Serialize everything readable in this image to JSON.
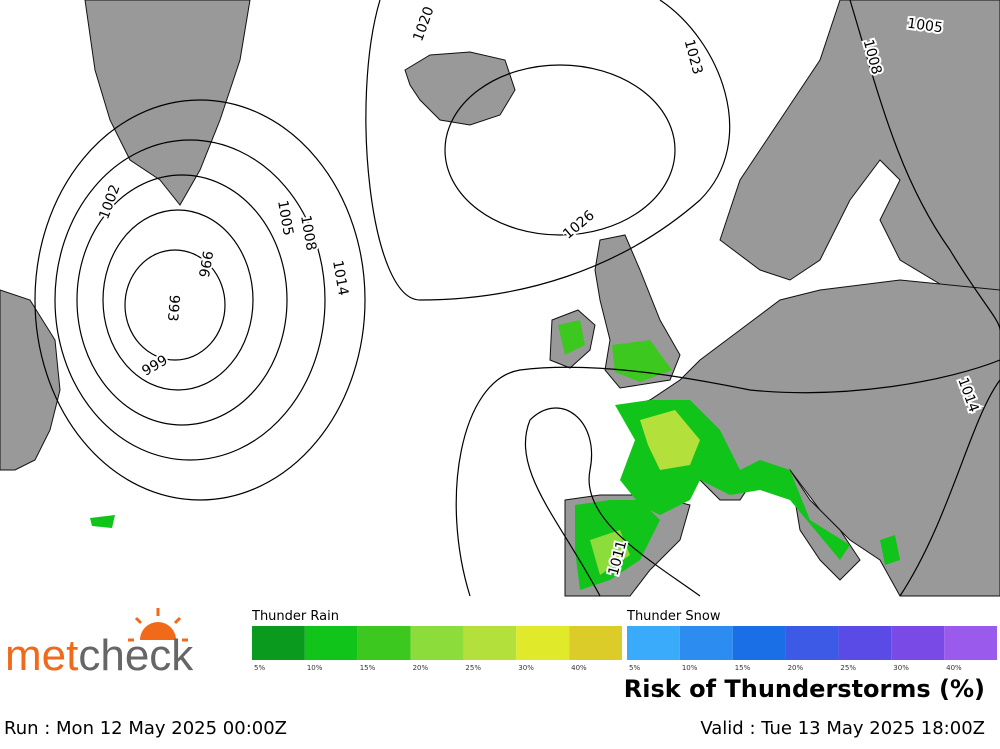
{
  "map": {
    "isobar_labels": [
      "1020",
      "1023",
      "1005",
      "1008",
      "1002",
      "1005",
      "1008",
      "996",
      "993",
      "999",
      "1014",
      "1026",
      "1014",
      "1011"
    ]
  },
  "logo": [
    "met",
    "check"
  ],
  "legend": {
    "rain": {
      "title": "Thunder Rain",
      "bins": [
        {
          "label": "5%",
          "color": "#0a9a1e"
        },
        {
          "label": "10%",
          "color": "#10c41a"
        },
        {
          "label": "15%",
          "color": "#3cc81e"
        },
        {
          "label": "20%",
          "color": "#8cdc3c"
        },
        {
          "label": "25%",
          "color": "#b4e03c"
        },
        {
          "label": "30%",
          "color": "#e0ea2a"
        },
        {
          "label": "40%",
          "color": "#dccc2a"
        }
      ]
    },
    "snow": {
      "title": "Thunder Snow",
      "bins": [
        {
          "label": "5%",
          "color": "#3aaafa"
        },
        {
          "label": "10%",
          "color": "#2d8cf0"
        },
        {
          "label": "15%",
          "color": "#1a6ee6"
        },
        {
          "label": "20%",
          "color": "#3c5ae6"
        },
        {
          "label": "25%",
          "color": "#5a4ae6"
        },
        {
          "label": "30%",
          "color": "#7a4ae6"
        },
        {
          "label": "40%",
          "color": "#9a5aec"
        }
      ]
    }
  },
  "title": "Risk of Thunderstorms (%)",
  "run": "Run : Mon 12 May 2025 00:00Z",
  "valid": "Valid : Tue 13 May 2025 18:00Z"
}
